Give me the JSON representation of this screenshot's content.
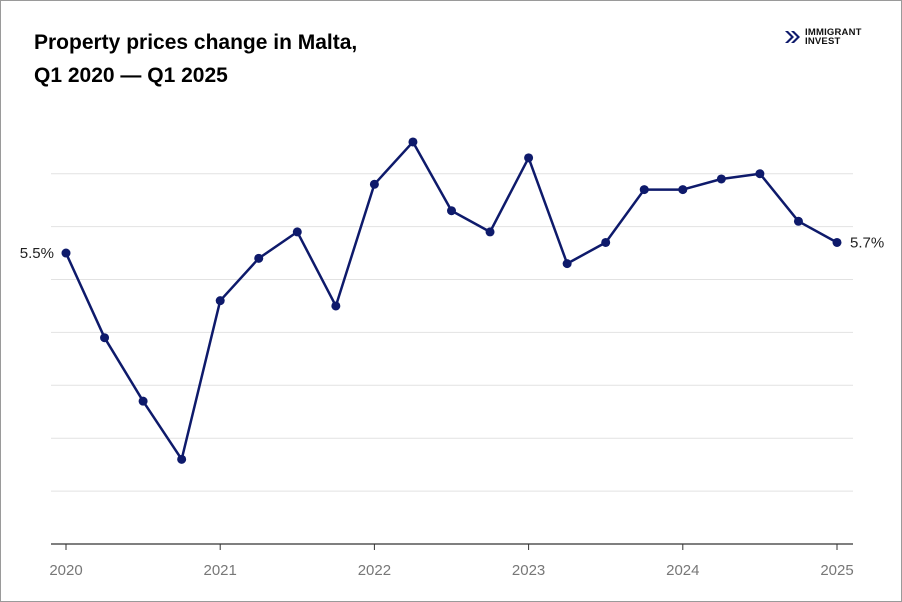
{
  "title_line1": "Property prices change in Malta,",
  "title_line2": "Q1 2020 — Q1 2025",
  "logo": {
    "line1": "IMMIGRANT",
    "line2": "INVEST"
  },
  "chart_data": {
    "type": "line",
    "title": "Property prices change in Malta, Q1 2020 — Q1 2025",
    "x": [
      "Q1 2020",
      "Q2 2020",
      "Q3 2020",
      "Q4 2020",
      "Q1 2021",
      "Q2 2021",
      "Q3 2021",
      "Q4 2021",
      "Q1 2022",
      "Q2 2022",
      "Q3 2022",
      "Q4 2022",
      "Q1 2023",
      "Q2 2023",
      "Q3 2023",
      "Q4 2023",
      "Q1 2024",
      "Q2 2024",
      "Q3 2024",
      "Q4 2024",
      "Q1 2025"
    ],
    "values": [
      5.5,
      3.9,
      2.7,
      1.6,
      4.6,
      5.4,
      5.9,
      4.5,
      6.8,
      7.6,
      6.3,
      5.9,
      7.3,
      5.3,
      5.7,
      6.7,
      6.7,
      6.9,
      7.0,
      6.1,
      5.7
    ],
    "unit": "%",
    "x_tick_labels": [
      "2020",
      "2021",
      "2022",
      "2023",
      "2024",
      "2025"
    ],
    "data_labels": [
      {
        "index": 0,
        "text": "5.5%"
      },
      {
        "index": 20,
        "text": "5.7%"
      }
    ],
    "ylim": [
      0,
      7
    ],
    "grid": true,
    "line_color": "#0e1a6b",
    "legend": "none"
  }
}
